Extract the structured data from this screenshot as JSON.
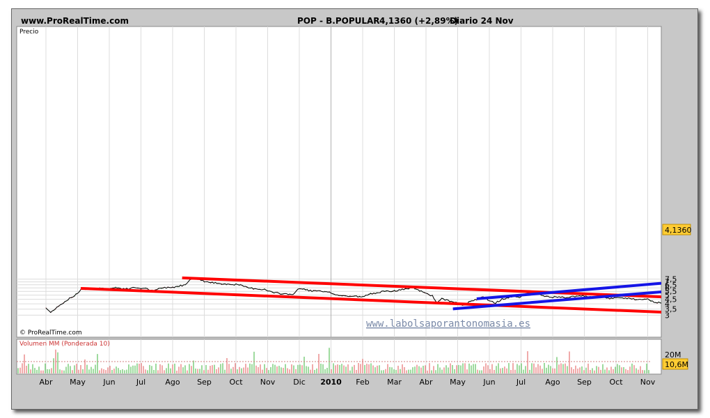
{
  "header": {
    "site": "www.ProRealTime.com",
    "ticker": "POP - B.POPULAR",
    "price_change": "4,1360 (+2,89%)",
    "period_date": "Diario  24 Nov"
  },
  "colors": {
    "frame": "#c8c8c8",
    "plot_bg": "#ffffff",
    "grid": "#dcdcdc",
    "price_line": "#000000",
    "channel_red": "#ff0000",
    "channel_blue": "#1515e6",
    "volume_up": "#3cb43c",
    "volume_down": "#e05555",
    "price_label_bg": "#ffcc33",
    "watermark": "#7a8aa8"
  },
  "chart_data": {
    "type": "line",
    "title": "POP - B.POPULAR",
    "price_panel_label": "Precio",
    "volume_panel_label": "Volumen MM (Ponderada 10)",
    "source_label": "© ProRealTime.com",
    "watermark": "www.labolsaporantonomasia.es",
    "last_price_label": "4,1360",
    "last_volume_label": "10,6M",
    "volume_tick_label": "20M",
    "ylim": [
      3,
      7.8
    ],
    "y_ticks": [
      {
        "v": 3,
        "label": "3"
      },
      {
        "v": 3.5,
        "label": "3,5"
      },
      {
        "v": 4,
        "label": "4"
      },
      {
        "v": 4.5,
        "label": "4,5"
      },
      {
        "v": 5,
        "label": "5"
      },
      {
        "v": 5.5,
        "label": "5,5"
      },
      {
        "v": 6,
        "label": "6"
      },
      {
        "v": 6.5,
        "label": "6,5"
      },
      {
        "v": 7,
        "label": "7"
      },
      {
        "v": 7.5,
        "label": "7,5"
      }
    ],
    "x_labels": [
      "Abr",
      "May",
      "Jun",
      "Jul",
      "Ago",
      "Sep",
      "Oct",
      "Nov",
      "Dic",
      "2010",
      "Feb",
      "Mar",
      "Abr",
      "May",
      "Jun",
      "Jul",
      "Ago",
      "Sep",
      "Oct",
      "Nov"
    ],
    "x_label_bold_index": 9,
    "price_series": {
      "name": "POP - B.POPULAR",
      "points": [
        [
          0.0,
          3.6
        ],
        [
          0.15,
          3.2
        ],
        [
          0.35,
          3.7
        ],
        [
          0.55,
          4.1
        ],
        [
          0.7,
          4.5
        ],
        [
          0.85,
          4.8
        ],
        [
          1.0,
          5.2
        ],
        [
          1.1,
          5.8
        ],
        [
          1.3,
          5.9
        ],
        [
          1.5,
          5.75
        ],
        [
          1.7,
          6.0
        ],
        [
          1.9,
          5.85
        ],
        [
          2.0,
          5.85
        ],
        [
          2.2,
          6.05
        ],
        [
          2.4,
          5.9
        ],
        [
          2.6,
          5.85
        ],
        [
          2.8,
          6.05
        ],
        [
          3.0,
          5.95
        ],
        [
          3.2,
          5.85
        ],
        [
          3.4,
          5.5
        ],
        [
          3.6,
          5.95
        ],
        [
          3.8,
          6.05
        ],
        [
          4.0,
          6.1
        ],
        [
          4.2,
          6.3
        ],
        [
          4.4,
          6.5
        ],
        [
          4.5,
          7.2
        ],
        [
          4.6,
          7.6
        ],
        [
          4.75,
          7.55
        ],
        [
          4.9,
          7.35
        ],
        [
          5.0,
          7.1
        ],
        [
          5.2,
          6.85
        ],
        [
          5.4,
          6.8
        ],
        [
          5.6,
          6.65
        ],
        [
          5.8,
          6.6
        ],
        [
          6.0,
          6.55
        ],
        [
          6.2,
          6.35
        ],
        [
          6.35,
          6.05
        ],
        [
          6.5,
          5.95
        ],
        [
          6.7,
          5.85
        ],
        [
          6.9,
          5.75
        ],
        [
          7.0,
          5.6
        ],
        [
          7.2,
          5.3
        ],
        [
          7.4,
          5.2
        ],
        [
          7.6,
          5.15
        ],
        [
          7.8,
          5.1
        ],
        [
          8.0,
          5.9
        ],
        [
          8.2,
          5.75
        ],
        [
          8.4,
          5.55
        ],
        [
          8.6,
          5.55
        ],
        [
          8.8,
          5.4
        ],
        [
          9.0,
          5.3
        ],
        [
          9.2,
          5.0
        ],
        [
          9.4,
          4.9
        ],
        [
          9.6,
          4.85
        ],
        [
          9.8,
          4.85
        ],
        [
          10.0,
          4.75
        ],
        [
          10.2,
          5.1
        ],
        [
          10.4,
          5.3
        ],
        [
          10.6,
          5.45
        ],
        [
          10.8,
          5.5
        ],
        [
          11.0,
          5.55
        ],
        [
          11.2,
          5.7
        ],
        [
          11.4,
          5.9
        ],
        [
          11.6,
          5.95
        ],
        [
          11.8,
          5.6
        ],
        [
          12.0,
          5.25
        ],
        [
          12.2,
          4.9
        ],
        [
          12.35,
          4.1
        ],
        [
          12.5,
          4.55
        ],
        [
          12.7,
          4.35
        ],
        [
          12.9,
          4.15
        ],
        [
          13.0,
          4.05
        ],
        [
          13.2,
          3.85
        ],
        [
          13.4,
          4.25
        ],
        [
          13.6,
          4.5
        ],
        [
          13.8,
          4.85
        ],
        [
          14.0,
          4.3
        ],
        [
          14.2,
          4.1
        ],
        [
          14.4,
          4.5
        ],
        [
          14.6,
          4.7
        ],
        [
          14.8,
          4.8
        ],
        [
          15.0,
          4.75
        ],
        [
          15.2,
          5.3
        ],
        [
          15.4,
          5.2
        ],
        [
          15.6,
          5.1
        ],
        [
          15.8,
          4.8
        ],
        [
          16.0,
          4.7
        ],
        [
          16.2,
          4.8
        ],
        [
          16.4,
          4.65
        ],
        [
          16.6,
          4.85
        ],
        [
          16.8,
          4.85
        ],
        [
          17.0,
          4.9
        ],
        [
          17.2,
          4.75
        ],
        [
          17.4,
          4.7
        ],
        [
          17.6,
          4.65
        ],
        [
          17.8,
          4.6
        ],
        [
          18.0,
          4.65
        ],
        [
          18.2,
          4.7
        ],
        [
          18.4,
          4.6
        ],
        [
          18.6,
          4.5
        ],
        [
          18.8,
          4.4
        ],
        [
          19.0,
          4.5
        ],
        [
          19.2,
          4.2
        ],
        [
          19.4,
          4.1
        ],
        [
          19.55,
          3.95
        ],
        [
          19.65,
          4.14
        ]
      ]
    },
    "channel_lines": [
      {
        "color": "red",
        "x": [
          4.3,
          20.1
        ],
        "y": [
          7.75,
          4.68
        ]
      },
      {
        "color": "red",
        "x": [
          1.1,
          20.1
        ],
        "y": [
          5.93,
          3.17
        ]
      },
      {
        "color": "blue",
        "x": [
          13.6,
          20.1
        ],
        "y": [
          4.55,
          7.06
        ]
      },
      {
        "color": "blue",
        "x": [
          12.85,
          20.1
        ],
        "y": [
          3.52,
          5.67
        ]
      }
    ]
  }
}
